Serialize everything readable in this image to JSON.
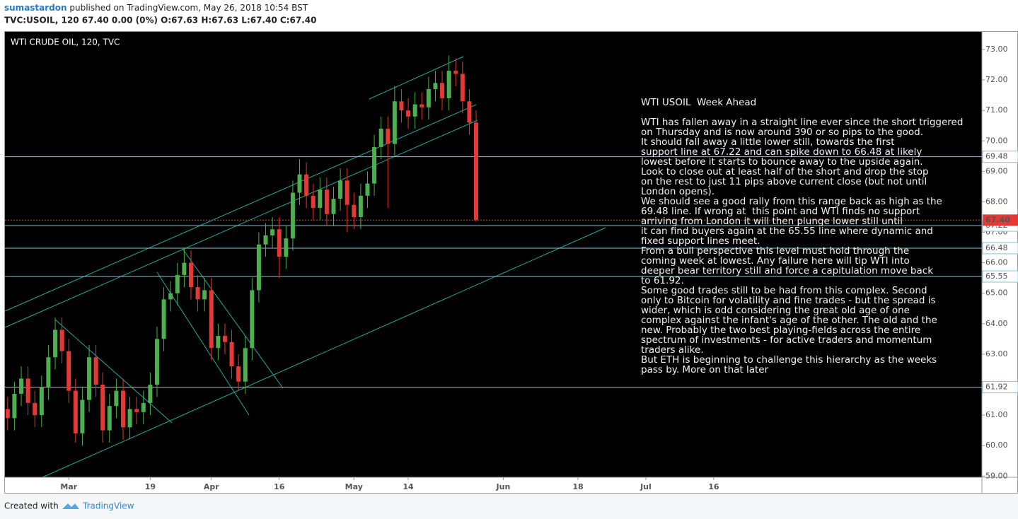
{
  "header": {
    "author": "sumastardon",
    "published": " published on TradingView.com, May 26, 2018 10:54 BST",
    "symbol_line": "TVC:USOIL, 120 67.40 0.00 (0%) O:67.63 H:67.63 L:67.40 C:67.40"
  },
  "footer": {
    "created_with": "Created with",
    "brand": "TradingView"
  },
  "chart_data": {
    "type": "candlestick",
    "title": "WTI CRUDE OIL, 120, TVC",
    "up_color": "#4caf50",
    "down_color": "#e53935",
    "grid": false,
    "x": [
      -9,
      -8,
      -7,
      -6,
      -5,
      -4,
      -3,
      -2,
      -1,
      0,
      1,
      2,
      3,
      4,
      5,
      6,
      7,
      8,
      9,
      10,
      11,
      12,
      13,
      14,
      15,
      16,
      17,
      18,
      19,
      20,
      21,
      22,
      23,
      24,
      25,
      26,
      27,
      28,
      29,
      30,
      31,
      32,
      33,
      34,
      35,
      36,
      37,
      38,
      39,
      40,
      41,
      42,
      43,
      44,
      45,
      46,
      47,
      48,
      49,
      50,
      51,
      52,
      53,
      54,
      55,
      56,
      57,
      58,
      59,
      60
    ],
    "open": [
      61.2,
      60.9,
      61.7,
      62.2,
      61.4,
      61.0,
      61.9,
      62.9,
      63.8,
      63.1,
      61.8,
      60.4,
      61.5,
      62.9,
      62.0,
      60.5,
      61.3,
      61.8,
      60.6,
      61.2,
      61.1,
      61.4,
      62.0,
      63.5,
      64.8,
      65.0,
      65.6,
      66.0,
      65.2,
      64.8,
      65.1,
      63.2,
      63.6,
      63.4,
      62.6,
      62.1,
      63.2,
      65.1,
      66.6,
      66.9,
      67.1,
      66.2,
      66.8,
      68.3,
      68.9,
      68.2,
      67.8,
      68.4,
      67.6,
      68.1,
      68.7,
      67.9,
      67.5,
      68.2,
      68.6,
      69.8,
      70.4,
      69.9,
      71.3,
      71.0,
      70.8,
      71.2,
      71.1,
      71.7,
      71.9,
      71.4,
      72.3,
      72.2,
      71.3,
      70.6
    ],
    "high": [
      61.6,
      62.1,
      62.6,
      62.6,
      61.8,
      62.3,
      63.3,
      64.2,
      64.2,
      63.5,
      62.2,
      61.9,
      63.3,
      63.3,
      62.4,
      61.7,
      62.2,
      62.2,
      61.6,
      61.6,
      61.8,
      62.4,
      63.9,
      65.2,
      65.4,
      66.0,
      66.5,
      66.4,
      65.6,
      65.5,
      65.5,
      64.0,
      64.0,
      63.8,
      63.0,
      63.6,
      65.5,
      67.0,
      67.3,
      67.5,
      67.5,
      67.2,
      68.7,
      69.4,
      69.3,
      68.6,
      68.8,
      68.8,
      68.5,
      69.1,
      69.1,
      68.3,
      68.6,
      69.0,
      70.2,
      70.8,
      70.8,
      71.8,
      71.7,
      71.4,
      71.6,
      71.6,
      72.1,
      72.3,
      72.3,
      72.8,
      72.7,
      72.6,
      71.7,
      71.0
    ],
    "low": [
      60.5,
      60.5,
      61.3,
      61.0,
      60.6,
      60.6,
      61.5,
      62.5,
      62.7,
      61.4,
      60.1,
      60.0,
      61.1,
      61.6,
      60.1,
      60.1,
      60.9,
      60.2,
      60.2,
      60.7,
      60.7,
      61.0,
      61.6,
      63.1,
      64.4,
      64.6,
      65.2,
      64.8,
      64.4,
      64.4,
      62.8,
      62.8,
      63.0,
      62.2,
      61.8,
      61.7,
      62.8,
      64.7,
      66.2,
      66.5,
      65.5,
      65.8,
      66.4,
      67.9,
      67.8,
      67.4,
      67.4,
      67.2,
      67.2,
      67.7,
      67.0,
      67.1,
      67.1,
      67.8,
      68.2,
      69.4,
      67.8,
      69.5,
      70.6,
      70.4,
      70.4,
      70.7,
      70.7,
      71.3,
      71.0,
      71.0,
      71.8,
      70.9,
      70.2,
      67.35
    ],
    "close": [
      60.9,
      61.7,
      62.2,
      61.4,
      61.0,
      61.9,
      62.9,
      63.8,
      63.1,
      61.8,
      60.4,
      61.5,
      62.9,
      62.0,
      60.5,
      61.3,
      61.8,
      60.6,
      61.2,
      61.1,
      61.4,
      62.0,
      63.5,
      64.8,
      65.0,
      65.6,
      66.0,
      65.2,
      64.8,
      65.1,
      63.2,
      63.6,
      63.4,
      62.6,
      62.1,
      63.2,
      65.1,
      66.6,
      66.9,
      67.1,
      66.2,
      66.8,
      68.3,
      68.9,
      68.2,
      67.8,
      68.4,
      67.6,
      68.1,
      68.7,
      67.9,
      67.5,
      68.2,
      68.6,
      69.8,
      70.4,
      69.9,
      71.3,
      71.0,
      70.8,
      71.2,
      71.1,
      71.7,
      71.9,
      71.4,
      72.3,
      72.2,
      71.3,
      70.6,
      67.4
    ],
    "xlim": [
      -9.4,
      134.5
    ],
    "xticks": [
      {
        "value": 0,
        "label": "Mar"
      },
      {
        "value": 12,
        "label": "19"
      },
      {
        "value": 21,
        "label": "Apr"
      },
      {
        "value": 31,
        "label": "16"
      },
      {
        "value": 42,
        "label": "May"
      },
      {
        "value": 50,
        "label": "14"
      },
      {
        "value": 64,
        "label": "Jun"
      },
      {
        "value": 75,
        "label": "18"
      },
      {
        "value": 85,
        "label": "Jul"
      },
      {
        "value": 95,
        "label": "16"
      }
    ],
    "ylim": [
      58.96,
      73.58
    ],
    "yticks": [
      {
        "value": 59,
        "label": "59.00"
      },
      {
        "value": 60,
        "label": "60.00"
      },
      {
        "value": 61,
        "label": "61.00"
      },
      {
        "value": 62,
        "label": "62.00"
      },
      {
        "value": 63,
        "label": "63.00"
      },
      {
        "value": 64,
        "label": "64.00"
      },
      {
        "value": 65,
        "label": "65.00"
      },
      {
        "value": 66,
        "label": "66.00"
      },
      {
        "value": 67,
        "label": "67.00"
      },
      {
        "value": 68,
        "label": "68.00"
      },
      {
        "value": 69,
        "label": "69.00"
      },
      {
        "value": 70,
        "label": "70.00"
      },
      {
        "value": 71,
        "label": "71.00"
      },
      {
        "value": 72,
        "label": "72.00"
      },
      {
        "value": 73,
        "label": "73.00"
      }
    ],
    "level_color": "#86c5d8",
    "levels": [
      69.48,
      67.22,
      66.48,
      65.55,
      61.92
    ],
    "last_price": {
      "value": 67.4,
      "label": "67.40"
    },
    "annotation": {
      "title": "WTI USOIL  Week Ahead",
      "lines": [
        "WTI has fallen away in a straight line ever since the short triggered",
        "on Thursday and is now around 390 or so pips to the good.",
        "It should fall away a little lower still, towards the first",
        "support line at 67.22 and can spike down to 66.48 at likely",
        "lowest before it starts to bounce away to the upside again.",
        "Look to close out at least half of the short and drop the stop",
        "on the rest to just 11 pips above current close (but not until",
        "London opens).",
        "We should see a good rally from this range back as high as the",
        "69.48 line. If wrong at  this point and WTI finds no support",
        "arriving from London it will then plunge lower still until",
        "it can find buyers again at the 65.55 line where dynamic and",
        "fixed support lines meet.",
        "From a bull perspective this level must hold through the",
        "coming week at lowest. Any failure here will tip WTI into",
        "deeper bear territory still and force a capitulation move back",
        "to 61.92.",
        "Some good trades still to be had from this complex. Second",
        "only to Bitcoin for volatility and fine trades - but the spread is",
        "wider, which is odd considering the great old age of one",
        "complex against the infant's age of the other. The old and the",
        "new. Probably the two best playing-fields across the entire",
        "spectrum of investments - for active traders and momentum",
        "traders alike.",
        "But ETH is beginning to challenge this hierarchy as the weeks",
        "pass by. More on that later"
      ]
    }
  }
}
